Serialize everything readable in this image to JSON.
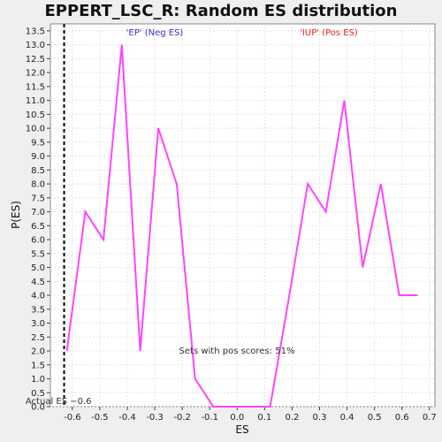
{
  "chart_data": {
    "type": "line",
    "title": "EPPERT_LSC_R: Random ES distribution",
    "xlabel": "ES",
    "ylabel": "P(ES)",
    "xlim": [
      -0.68,
      0.72
    ],
    "ylim": [
      0,
      13.75
    ],
    "x_ticks": [
      "-0.6",
      "-0.5",
      "-0.4",
      "-0.3",
      "-0.2",
      "-0.1",
      "0.0",
      "0.1",
      "0.2",
      "0.3",
      "0.4",
      "0.5",
      "0.6",
      "0.7"
    ],
    "x_tick_values": [
      -0.6,
      -0.5,
      -0.4,
      -0.3,
      -0.2,
      -0.1,
      0.0,
      0.1,
      0.2,
      0.3,
      0.4,
      0.5,
      0.6,
      0.7
    ],
    "y_ticks": [
      "0.0",
      "0.5",
      "1.0",
      "1.5",
      "2.0",
      "2.5",
      "3.0",
      "3.5",
      "4.0",
      "4.5",
      "5.0",
      "5.5",
      "6.0",
      "6.5",
      "7.0",
      "7.5",
      "8.0",
      "8.5",
      "9.0",
      "9.5",
      "10.0",
      "10.5",
      "11.0",
      "11.5",
      "12.0",
      "12.5",
      "13.0",
      "13.5"
    ],
    "y_tick_values": [
      0,
      0.5,
      1,
      1.5,
      2,
      2.5,
      3,
      3.5,
      4,
      4.5,
      5,
      5.5,
      6,
      6.5,
      7,
      7.5,
      8,
      8.5,
      9,
      9.5,
      10,
      10.5,
      11,
      11.5,
      12,
      12.5,
      13,
      13.5
    ],
    "grid": true,
    "series": [
      {
        "color": "#ff44ff",
        "x": [
          -0.62,
          -0.553,
          -0.487,
          -0.42,
          -0.353,
          -0.287,
          -0.22,
          -0.153,
          -0.087,
          -0.02,
          0.047,
          0.12,
          0.19,
          0.257,
          0.323,
          0.39,
          0.457,
          0.523,
          0.59,
          0.657
        ],
        "y": [
          2,
          7,
          6,
          13,
          2,
          10,
          8,
          1,
          0,
          0,
          0,
          0,
          4,
          8,
          7,
          11,
          5,
          8,
          4,
          4
        ]
      }
    ],
    "vline": {
      "x": -0.63,
      "label": "Actual ES −0.6",
      "color": "#000000"
    },
    "annotations": {
      "neg_label": "'EP' (Neg ES)",
      "neg_color": "#3333cc",
      "pos_label": "'IUP' (Pos ES)",
      "pos_color": "#ee2222",
      "pos_scores": "Sets with pos scores: 51%",
      "pos_scores_color": "#333333"
    }
  }
}
